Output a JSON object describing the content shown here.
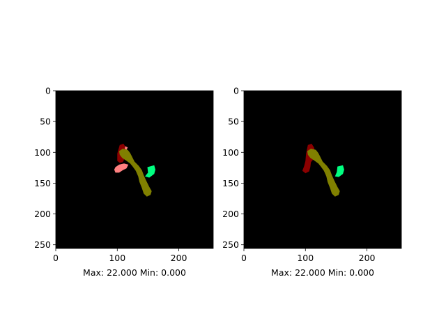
{
  "figure": {
    "background": "#ffffff",
    "axes_color": "#000000",
    "image_background": "#000000"
  },
  "chart_data": [
    {
      "type": "heatmap",
      "title": "",
      "xlabel": "Max: 22.000 Min: 0.000",
      "ylabel": "",
      "xlim": [
        0,
        256
      ],
      "ylim": [
        256,
        0
      ],
      "xticks": [
        0,
        100,
        200
      ],
      "yticks": [
        0,
        50,
        100,
        150,
        200,
        250
      ],
      "grid": false,
      "image_size": [
        256,
        256
      ],
      "regions": [
        {
          "color": "#8b0000",
          "polygon": [
            [
              104,
              88
            ],
            [
              110,
              86
            ],
            [
              114,
              92
            ],
            [
              116,
              100
            ],
            [
              114,
              108
            ],
            [
              111,
              112
            ],
            [
              109,
              116
            ],
            [
              104,
              117
            ],
            [
              100,
              114
            ],
            [
              100,
              102
            ]
          ]
        },
        {
          "color": "#ff8080",
          "polygon": [
            [
              97,
              124
            ],
            [
              103,
              120
            ],
            [
              111,
              118
            ],
            [
              118,
              120
            ],
            [
              115,
              126
            ],
            [
              109,
              129
            ],
            [
              103,
              133
            ],
            [
              97,
              133
            ],
            [
              95,
              128
            ]
          ]
        },
        {
          "color": "#ff8080",
          "polygon": [
            [
              113,
              90
            ],
            [
              117,
              92
            ],
            [
              115,
              96
            ],
            [
              112,
              94
            ]
          ]
        },
        {
          "color": "#00ff80",
          "polygon": [
            [
              149,
              124
            ],
            [
              160,
              121
            ],
            [
              162,
              128
            ],
            [
              160,
              135
            ],
            [
              152,
              141
            ],
            [
              145,
              139
            ],
            [
              150,
              133
            ]
          ]
        },
        {
          "color": "#808000",
          "polygon": [
            [
              103,
              98
            ],
            [
              109,
              94
            ],
            [
              117,
              96
            ],
            [
              121,
              101
            ],
            [
              124,
              107
            ],
            [
              128,
              115
            ],
            [
              135,
              122
            ],
            [
              140,
              129
            ],
            [
              143,
              137
            ],
            [
              147,
              146
            ],
            [
              152,
              156
            ],
            [
              156,
              163
            ],
            [
              154,
              169
            ],
            [
              148,
              172
            ],
            [
              143,
              167
            ],
            [
              140,
              158
            ],
            [
              136,
              148
            ],
            [
              134,
              139
            ],
            [
              130,
              130
            ],
            [
              125,
              123
            ],
            [
              121,
              118
            ],
            [
              114,
              113
            ],
            [
              108,
              109
            ],
            [
              104,
              104
            ]
          ]
        }
      ]
    },
    {
      "type": "heatmap",
      "title": "",
      "xlabel": "Max: 22.000 Min: 0.000",
      "ylabel": "",
      "xlim": [
        0,
        256
      ],
      "ylim": [
        256,
        0
      ],
      "xticks": [
        0,
        100,
        200
      ],
      "yticks": [
        0,
        50,
        100,
        150,
        200,
        250
      ],
      "grid": false,
      "image_size": [
        256,
        256
      ],
      "regions": [
        {
          "color": "#8b0000",
          "polygon": [
            [
              104,
              88
            ],
            [
              110,
              86
            ],
            [
              114,
              92
            ],
            [
              116,
              100
            ],
            [
              114,
              110
            ],
            [
              109,
              116
            ],
            [
              108,
              124
            ],
            [
              106,
              131
            ],
            [
              100,
              134
            ],
            [
              95,
              130
            ],
            [
              98,
              122
            ],
            [
              100,
              114
            ],
            [
              101,
              102
            ]
          ]
        },
        {
          "color": "#00ff80",
          "polygon": [
            [
              152,
              123
            ],
            [
              161,
              121
            ],
            [
              163,
              128
            ],
            [
              161,
              135
            ],
            [
              154,
              140
            ],
            [
              148,
              139
            ],
            [
              151,
              132
            ]
          ]
        },
        {
          "color": "#808000",
          "polygon": [
            [
              103,
              98
            ],
            [
              109,
              94
            ],
            [
              117,
              96
            ],
            [
              121,
              101
            ],
            [
              124,
              107
            ],
            [
              128,
              115
            ],
            [
              135,
              122
            ],
            [
              140,
              129
            ],
            [
              143,
              137
            ],
            [
              147,
              146
            ],
            [
              152,
              156
            ],
            [
              156,
              163
            ],
            [
              154,
              169
            ],
            [
              148,
              172
            ],
            [
              143,
              167
            ],
            [
              140,
              158
            ],
            [
              136,
              148
            ],
            [
              134,
              139
            ],
            [
              130,
              130
            ],
            [
              125,
              123
            ],
            [
              121,
              118
            ],
            [
              114,
              113
            ],
            [
              108,
              109
            ],
            [
              104,
              104
            ]
          ]
        }
      ]
    }
  ]
}
